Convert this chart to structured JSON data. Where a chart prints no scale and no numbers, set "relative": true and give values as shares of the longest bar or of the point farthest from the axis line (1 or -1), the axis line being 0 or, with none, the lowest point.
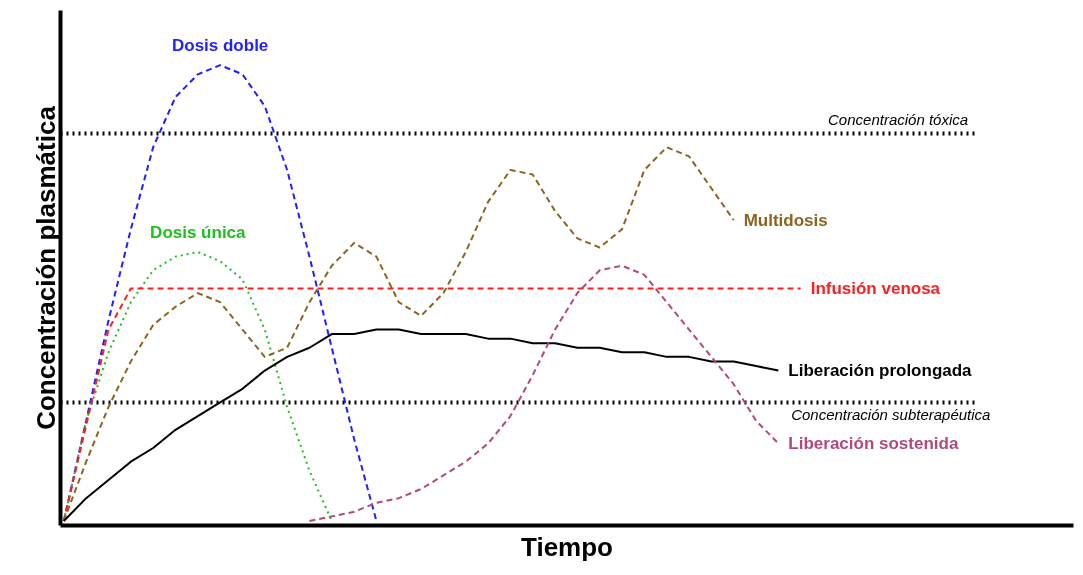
{
  "chart_data": {
    "type": "line",
    "relative": true,
    "xlabel": "Tiempo",
    "ylabel": "Concentración plasmática",
    "categories": [
      null,
      null,
      null,
      null,
      null,
      null,
      null,
      null,
      null,
      null,
      null,
      null,
      null,
      null,
      null,
      null,
      null,
      null,
      null,
      null,
      null,
      null,
      null,
      null,
      null,
      null,
      null,
      null,
      null,
      null,
      null,
      null,
      null,
      null
    ],
    "series": [
      {
        "name": "Dosis doble",
        "color": "#1f1fff",
        "line_style": "dashed",
        "values": [
          0,
          0.22,
          0.44,
          0.64,
          0.82,
          0.93,
          0.98,
          1.0,
          0.98,
          0.91,
          0.77,
          0.58,
          0.38,
          0.18,
          0.0,
          null,
          null,
          null,
          null,
          null,
          null,
          null,
          null,
          null,
          null,
          null,
          null,
          null,
          null,
          null,
          null,
          null,
          null,
          null
        ]
      },
      {
        "name": "Dosis única",
        "color": "#1fbf1f",
        "line_style": "dotted",
        "values": [
          0,
          0.22,
          0.37,
          0.48,
          0.55,
          0.58,
          0.59,
          0.57,
          0.53,
          0.42,
          0.25,
          0.11,
          0.0,
          null,
          null,
          null,
          null,
          null,
          null,
          null,
          null,
          null,
          null,
          null,
          null,
          null,
          null,
          null,
          null,
          null,
          null,
          null,
          null,
          null
        ]
      },
      {
        "name": "Infusión venosa",
        "color": "#ff1f1f",
        "line_style": "dashed",
        "values": [
          0,
          0.21,
          0.42,
          0.51,
          0.51,
          0.51,
          0.51,
          0.51,
          0.51,
          0.51,
          0.51,
          0.51,
          0.51,
          0.51,
          0.51,
          0.51,
          0.51,
          0.51,
          0.51,
          0.51,
          0.51,
          0.51,
          0.51,
          0.51,
          0.51,
          0.51,
          0.51,
          0.51,
          0.51,
          0.51,
          0.51,
          0.51,
          0.51,
          0.51
        ]
      },
      {
        "name": "Multidosis",
        "color": "#8c6420",
        "line_style": "dashed",
        "values": [
          0,
          0.13,
          0.25,
          0.35,
          0.43,
          0.47,
          0.5,
          0.48,
          0.42,
          0.36,
          0.38,
          0.48,
          0.56,
          0.61,
          0.58,
          0.48,
          0.45,
          0.5,
          0.59,
          0.7,
          0.77,
          0.76,
          0.68,
          0.62,
          0.6,
          0.64,
          0.77,
          0.82,
          0.8,
          0.73,
          0.66,
          null,
          null,
          null
        ]
      },
      {
        "name": "Liberación prolongada",
        "color": "#000000",
        "line_style": "solid",
        "values": [
          0,
          0.05,
          0.09,
          0.13,
          0.16,
          0.2,
          0.23,
          0.26,
          0.29,
          0.33,
          0.36,
          0.38,
          0.41,
          0.41,
          0.42,
          0.42,
          0.41,
          0.41,
          0.41,
          0.4,
          0.4,
          0.39,
          0.39,
          0.38,
          0.38,
          0.37,
          0.37,
          0.36,
          0.36,
          0.35,
          0.35,
          0.34,
          0.33,
          null
        ]
      },
      {
        "name": "Liberación sostenida",
        "color": "#b04a7e",
        "line_style": "dashed",
        "values": [
          null,
          null,
          null,
          null,
          null,
          null,
          null,
          null,
          null,
          null,
          null,
          0.0,
          0.01,
          0.02,
          0.04,
          0.05,
          0.07,
          0.1,
          0.13,
          0.17,
          0.23,
          0.32,
          0.42,
          0.5,
          0.55,
          0.56,
          0.54,
          0.48,
          0.42,
          0.36,
          0.3,
          0.22,
          0.17,
          null
        ]
      }
    ],
    "ref_lines": [
      {
        "axis": "y",
        "value": 0.85,
        "label": "Concentración tóxica",
        "color": "#000000",
        "line_style": "dotted"
      },
      {
        "axis": "y",
        "value": 0.26,
        "label": "Concentración subterapéutica",
        "color": "#000000",
        "line_style": "dotted"
      }
    ]
  }
}
